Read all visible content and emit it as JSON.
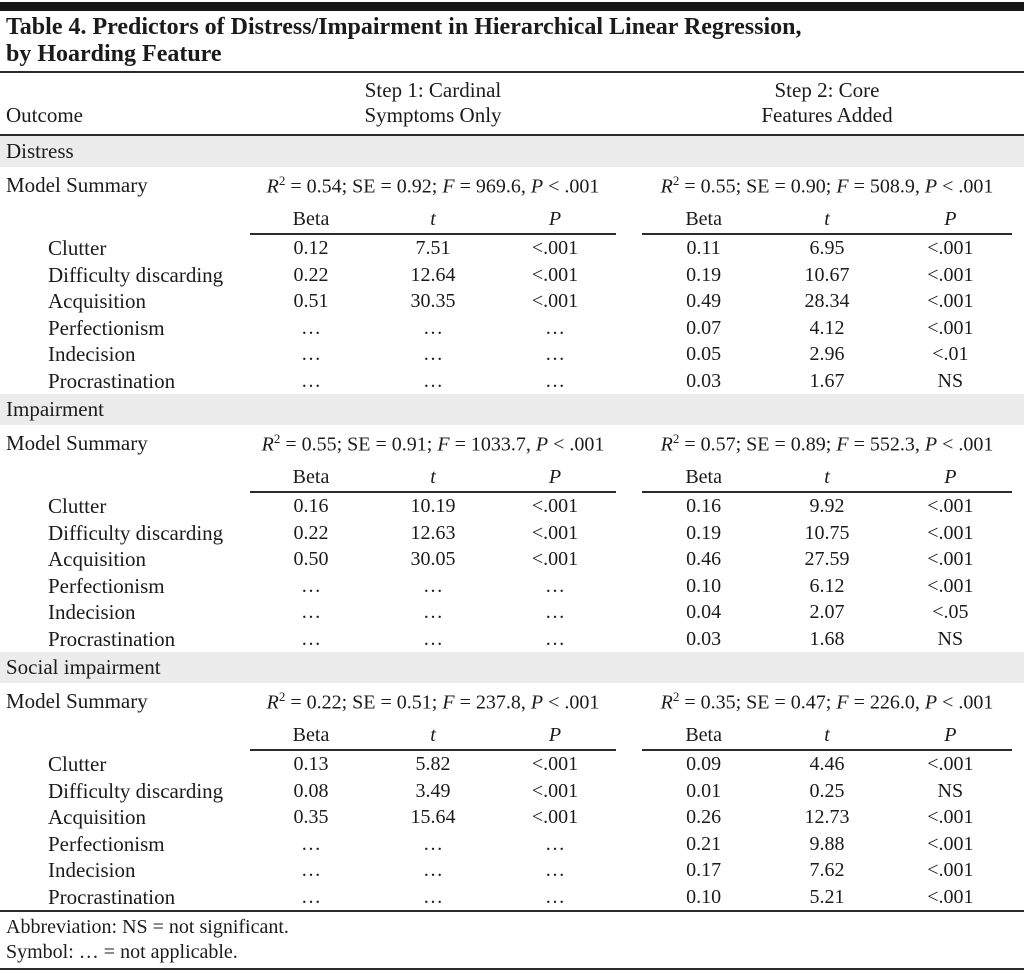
{
  "colors": {
    "top_bar": "#161616",
    "section_band": "#ececec",
    "rule": "#2b2b2b",
    "text": "#1b1b1b"
  },
  "title": {
    "line1": "Table 4. Predictors of Distress/Impairment in Hierarchical Linear Regression,",
    "line2": "by Hoarding Feature"
  },
  "header": {
    "outcome_label": "Outcome",
    "step1_line1": "Step 1: Cardinal",
    "step1_line2": "Symptoms Only",
    "step2_line1": "Step 2: Core",
    "step2_line2": "Features Added"
  },
  "columns": {
    "beta": "Beta",
    "t": "t",
    "p": "P"
  },
  "model_summary_label": "Model Summary",
  "sections": [
    {
      "name": "Distress",
      "summary1_parts": [
        {
          "t": "R",
          "i": true
        },
        {
          "t": "2",
          "sup": true
        },
        {
          "t": " = 0.54; SE = 0.92; "
        },
        {
          "t": "F",
          "i": true
        },
        {
          "t": " = 969.6, "
        },
        {
          "t": "P",
          "i": true
        },
        {
          "t": " < .001"
        }
      ],
      "summary2_parts": [
        {
          "t": "R",
          "i": true
        },
        {
          "t": "2",
          "sup": true
        },
        {
          "t": " = 0.55; SE = 0.90; "
        },
        {
          "t": "F",
          "i": true
        },
        {
          "t": " = 508.9, "
        },
        {
          "t": "P",
          "i": true
        },
        {
          "t": " < .001"
        }
      ],
      "rows": [
        {
          "label": "Clutter",
          "s1": [
            "0.12",
            "7.51",
            "<.001"
          ],
          "s2": [
            "0.11",
            "6.95",
            "<.001"
          ]
        },
        {
          "label": "Difficulty discarding",
          "s1": [
            "0.22",
            "12.64",
            "<.001"
          ],
          "s2": [
            "0.19",
            "10.67",
            "<.001"
          ]
        },
        {
          "label": "Acquisition",
          "s1": [
            "0.51",
            "30.35",
            "<.001"
          ],
          "s2": [
            "0.49",
            "28.34",
            "<.001"
          ]
        },
        {
          "label": "Perfectionism",
          "s1": [
            "…",
            "…",
            "…"
          ],
          "s2": [
            "0.07",
            "4.12",
            "<.001"
          ]
        },
        {
          "label": "Indecision",
          "s1": [
            "…",
            "…",
            "…"
          ],
          "s2": [
            "0.05",
            "2.96",
            "<.01"
          ]
        },
        {
          "label": "Procrastination",
          "s1": [
            "…",
            "…",
            "…"
          ],
          "s2": [
            "0.03",
            "1.67",
            "NS"
          ]
        }
      ]
    },
    {
      "name": "Impairment",
      "summary1_parts": [
        {
          "t": "R",
          "i": true
        },
        {
          "t": "2",
          "sup": true
        },
        {
          "t": " = 0.55; SE = 0.91; "
        },
        {
          "t": "F",
          "i": true
        },
        {
          "t": " = 1033.7, "
        },
        {
          "t": "P",
          "i": true
        },
        {
          "t": " < .001"
        }
      ],
      "summary2_parts": [
        {
          "t": "R",
          "i": true
        },
        {
          "t": "2",
          "sup": true
        },
        {
          "t": " = 0.57; SE = 0.89; "
        },
        {
          "t": "F",
          "i": true
        },
        {
          "t": " = 552.3, "
        },
        {
          "t": "P",
          "i": true
        },
        {
          "t": " < .001"
        }
      ],
      "rows": [
        {
          "label": "Clutter",
          "s1": [
            "0.16",
            "10.19",
            "<.001"
          ],
          "s2": [
            "0.16",
            "9.92",
            "<.001"
          ]
        },
        {
          "label": "Difficulty discarding",
          "s1": [
            "0.22",
            "12.63",
            "<.001"
          ],
          "s2": [
            "0.19",
            "10.75",
            "<.001"
          ]
        },
        {
          "label": "Acquisition",
          "s1": [
            "0.50",
            "30.05",
            "<.001"
          ],
          "s2": [
            "0.46",
            "27.59",
            "<.001"
          ]
        },
        {
          "label": "Perfectionism",
          "s1": [
            "…",
            "…",
            "…"
          ],
          "s2": [
            "0.10",
            "6.12",
            "<.001"
          ]
        },
        {
          "label": "Indecision",
          "s1": [
            "…",
            "…",
            "…"
          ],
          "s2": [
            "0.04",
            "2.07",
            "<.05"
          ]
        },
        {
          "label": "Procrastination",
          "s1": [
            "…",
            "…",
            "…"
          ],
          "s2": [
            "0.03",
            "1.68",
            "NS"
          ]
        }
      ]
    },
    {
      "name": "Social impairment",
      "summary1_parts": [
        {
          "t": "R",
          "i": true
        },
        {
          "t": "2",
          "sup": true
        },
        {
          "t": " = 0.22; SE = 0.51; "
        },
        {
          "t": "F",
          "i": true
        },
        {
          "t": " = 237.8, "
        },
        {
          "t": "P",
          "i": true
        },
        {
          "t": " < .001"
        }
      ],
      "summary2_parts": [
        {
          "t": "R",
          "i": true
        },
        {
          "t": "2",
          "sup": true
        },
        {
          "t": " = 0.35; SE = 0.47; "
        },
        {
          "t": "F",
          "i": true
        },
        {
          "t": " = 226.0, "
        },
        {
          "t": "P",
          "i": true
        },
        {
          "t": " < .001"
        }
      ],
      "rows": [
        {
          "label": "Clutter",
          "s1": [
            "0.13",
            "5.82",
            "<.001"
          ],
          "s2": [
            "0.09",
            "4.46",
            "<.001"
          ]
        },
        {
          "label": "Difficulty discarding",
          "s1": [
            "0.08",
            "3.49",
            "<.001"
          ],
          "s2": [
            "0.01",
            "0.25",
            "NS"
          ]
        },
        {
          "label": "Acquisition",
          "s1": [
            "0.35",
            "15.64",
            "<.001"
          ],
          "s2": [
            "0.26",
            "12.73",
            "<.001"
          ]
        },
        {
          "label": "Perfectionism",
          "s1": [
            "…",
            "…",
            "…"
          ],
          "s2": [
            "0.21",
            "9.88",
            "<.001"
          ]
        },
        {
          "label": "Indecision",
          "s1": [
            "…",
            "…",
            "…"
          ],
          "s2": [
            "0.17",
            "7.62",
            "<.001"
          ]
        },
        {
          "label": "Procrastination",
          "s1": [
            "…",
            "…",
            "…"
          ],
          "s2": [
            "0.10",
            "5.21",
            "<.001"
          ]
        }
      ]
    }
  ],
  "footnotes": {
    "abbreviation": "Abbreviation: NS = not significant.",
    "symbol": "Symbol: … = not applicable."
  }
}
